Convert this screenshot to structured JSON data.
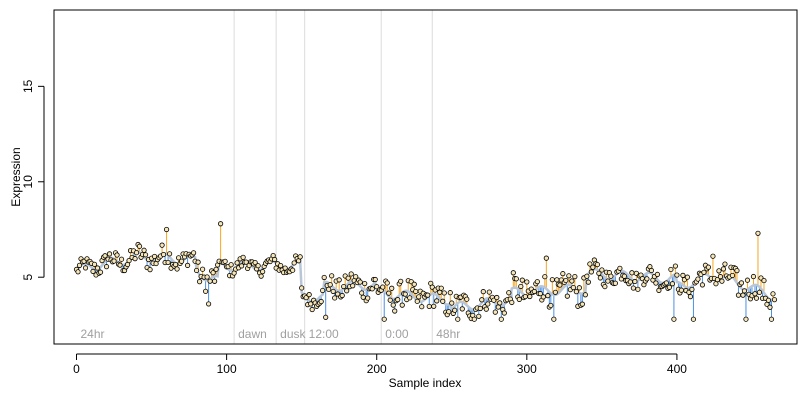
{
  "chart_data": {
    "type": "scatter",
    "title": "",
    "xlabel": "Sample index",
    "ylabel": "Expression",
    "xlim": [
      -15,
      480
    ],
    "ylim": [
      1.5,
      19
    ],
    "x_ticks": [
      0,
      100,
      200,
      300,
      400
    ],
    "y_ticks": [
      5,
      10,
      15
    ],
    "grid": false,
    "legend": "none",
    "colors": {
      "above_fitted": "#f5a623",
      "below_fitted": "#4a90e2",
      "fitted_line": "#b8c6d8",
      "point_fill": "#f7e6b8",
      "point_stroke": "#000000",
      "period_line": "#dcdcdc",
      "period_label": "#a0a0a0"
    },
    "period_markers": [
      {
        "x": 0,
        "label": "24hr",
        "line": false
      },
      {
        "x": 105,
        "label": "dawn",
        "line": true
      },
      {
        "x": 133,
        "label": "dusk",
        "line": true
      },
      {
        "x": 152,
        "label": "12:00",
        "line": true
      },
      {
        "x": 203,
        "label": "0:00",
        "line": true
      },
      {
        "x": 237,
        "label": "48hr",
        "line": true
      }
    ],
    "segments": [
      {
        "start": 0,
        "end": 10,
        "base": 5.3,
        "base_end": 5.6,
        "amp": 0.35
      },
      {
        "start": 10,
        "end": 40,
        "base": 5.6,
        "base_end": 6.0,
        "amp": 0.45
      },
      {
        "start": 40,
        "end": 80,
        "base": 6.1,
        "base_end": 5.9,
        "amp": 0.5
      },
      {
        "start": 80,
        "end": 95,
        "base": 5.3,
        "base_end": 4.8,
        "amp": 0.6
      },
      {
        "start": 95,
        "end": 150,
        "base": 5.6,
        "base_end": 5.6,
        "amp": 0.35
      },
      {
        "start": 150,
        "end": 165,
        "base": 4.0,
        "base_end": 3.9,
        "amp": 0.4
      },
      {
        "start": 165,
        "end": 200,
        "base": 4.5,
        "base_end": 4.6,
        "amp": 0.6
      },
      {
        "start": 200,
        "end": 250,
        "base": 4.2,
        "base_end": 3.8,
        "amp": 0.7
      },
      {
        "start": 250,
        "end": 290,
        "base": 3.4,
        "base_end": 3.8,
        "amp": 0.6
      },
      {
        "start": 290,
        "end": 340,
        "base": 4.2,
        "base_end": 4.4,
        "amp": 0.8
      },
      {
        "start": 340,
        "end": 400,
        "base": 5.2,
        "base_end": 4.9,
        "amp": 0.5
      },
      {
        "start": 400,
        "end": 430,
        "base": 4.5,
        "base_end": 5.2,
        "amp": 0.6
      },
      {
        "start": 430,
        "end": 466,
        "base": 5.0,
        "base_end": 4.0,
        "amp": 0.7
      }
    ],
    "outliers": [
      {
        "x": 60,
        "y": 7.5
      },
      {
        "x": 96,
        "y": 7.8
      },
      {
        "x": 166,
        "y": 6.5
      },
      {
        "x": 313,
        "y": 6.0
      },
      {
        "x": 424,
        "y": 6.1
      },
      {
        "x": 454,
        "y": 7.3
      },
      {
        "x": 88,
        "y": 3.6
      },
      {
        "x": 166,
        "y": 2.9
      },
      {
        "x": 205,
        "y": 2.8
      },
      {
        "x": 254,
        "y": 2.8
      },
      {
        "x": 265,
        "y": 2.8
      },
      {
        "x": 283,
        "y": 2.8
      },
      {
        "x": 318,
        "y": 2.8
      },
      {
        "x": 398,
        "y": 2.8
      },
      {
        "x": 411,
        "y": 2.8
      },
      {
        "x": 446,
        "y": 2.8
      },
      {
        "x": 463,
        "y": 2.8
      }
    ]
  }
}
